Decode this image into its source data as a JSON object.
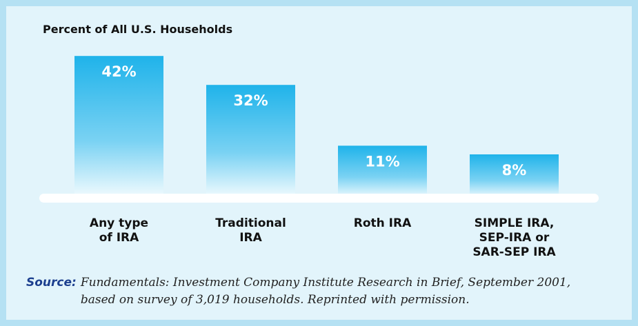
{
  "chart_data": {
    "type": "bar",
    "title": "Percent of All U.S. Households",
    "categories": [
      "Any type\nof IRA",
      "Traditional\nIRA",
      "Roth IRA",
      "SIMPLE IRA,\nSEP-IRA or\nSAR-SEP IRA"
    ],
    "values": [
      42,
      32,
      11,
      8
    ],
    "value_labels": [
      "42%",
      "32%",
      "11%",
      "8%"
    ],
    "color": "#1fb3ea",
    "ylim": [
      -7,
      45
    ],
    "source_label": "Source:",
    "source": "Fundamentals: Investment Company Institute Research in Brief, September 2001,\nbased on survey of 3,019 households. Reprinted with permission."
  }
}
